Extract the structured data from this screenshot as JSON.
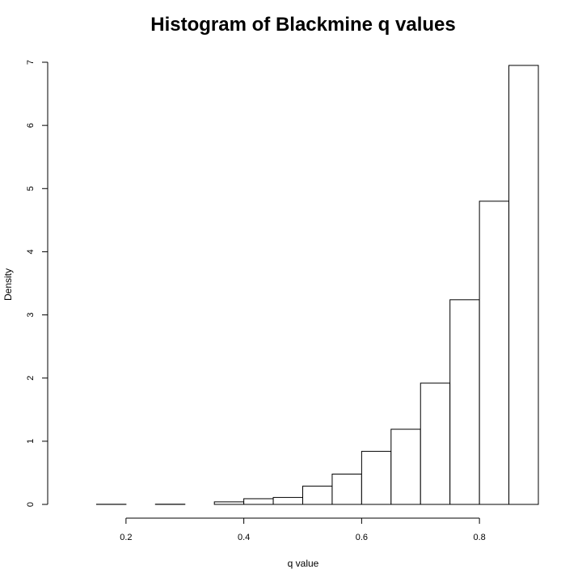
{
  "chart_data": {
    "type": "bar",
    "title": "Histogram of Blackmine q values",
    "xlabel": "q value",
    "ylabel": "Density",
    "xlim": [
      0.1,
      0.9
    ],
    "ylim": [
      0,
      7
    ],
    "x_ticks": [
      0.2,
      0.4,
      0.6,
      0.8
    ],
    "y_ticks": [
      0,
      1,
      2,
      3,
      4,
      5,
      6,
      7
    ],
    "bins": [
      {
        "x0": 0.1,
        "x1": 0.15,
        "value": 0.0
      },
      {
        "x0": 0.15,
        "x1": 0.2,
        "value": 0.002
      },
      {
        "x0": 0.2,
        "x1": 0.25,
        "value": 0.0
      },
      {
        "x0": 0.25,
        "x1": 0.3,
        "value": 0.003
      },
      {
        "x0": 0.3,
        "x1": 0.35,
        "value": 0.0
      },
      {
        "x0": 0.35,
        "x1": 0.4,
        "value": 0.04
      },
      {
        "x0": 0.4,
        "x1": 0.45,
        "value": 0.09
      },
      {
        "x0": 0.45,
        "x1": 0.5,
        "value": 0.11
      },
      {
        "x0": 0.5,
        "x1": 0.55,
        "value": 0.29
      },
      {
        "x0": 0.55,
        "x1": 0.6,
        "value": 0.48
      },
      {
        "x0": 0.6,
        "x1": 0.65,
        "value": 0.84
      },
      {
        "x0": 0.65,
        "x1": 0.7,
        "value": 1.19
      },
      {
        "x0": 0.7,
        "x1": 0.75,
        "value": 1.92
      },
      {
        "x0": 0.75,
        "x1": 0.8,
        "value": 3.24
      },
      {
        "x0": 0.8,
        "x1": 0.85,
        "value": 4.8
      },
      {
        "x0": 0.85,
        "x1": 0.9,
        "value": 6.95
      }
    ]
  }
}
